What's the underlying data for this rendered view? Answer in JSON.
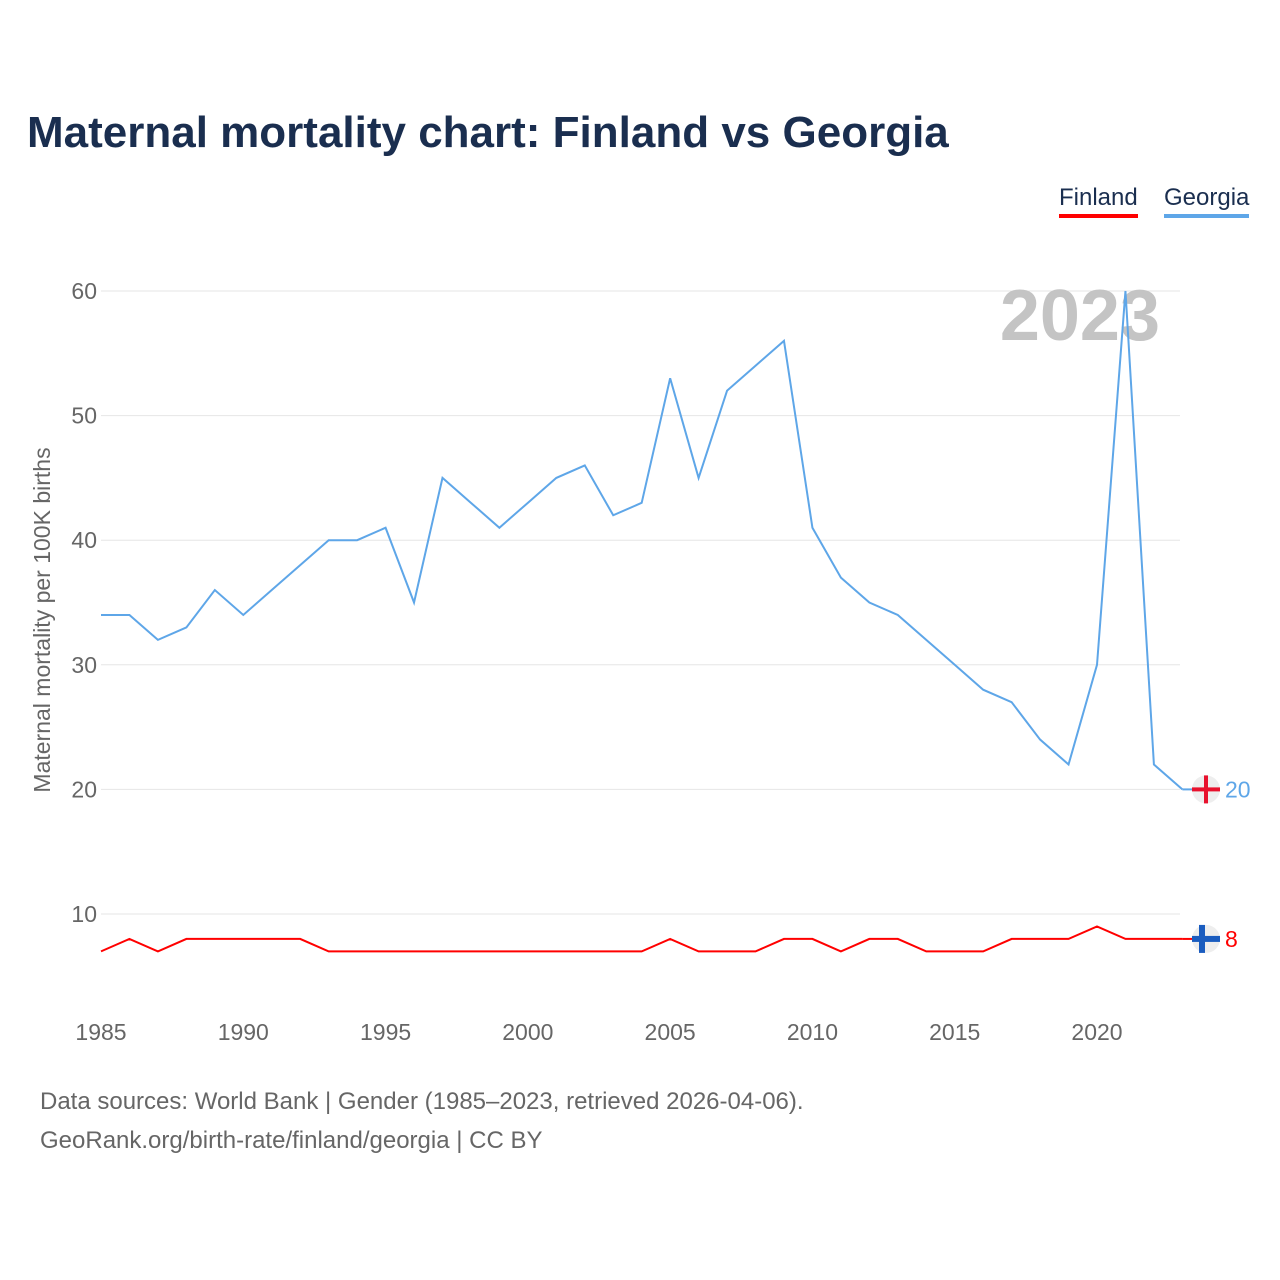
{
  "title": "Maternal mortality chart: Finland vs Georgia",
  "legend": {
    "finland": "Finland",
    "georgia": "Georgia"
  },
  "year_label": "2023",
  "source_line1": "Data sources: World Bank | Gender (1985–2023, retrieved 2026-04-06).",
  "source_line2": "GeoRank.org/birth-rate/finland/georgia | CC BY",
  "colors": {
    "finland": "#ff0000",
    "georgia": "#5ea6e8"
  },
  "chart_data": {
    "type": "line",
    "title": "Maternal mortality chart: Finland vs Georgia",
    "xlabel": "",
    "ylabel": "Maternal mortality per 100K births",
    "xlim": [
      1985,
      2023
    ],
    "ylim": [
      5,
      62
    ],
    "xticks": [
      1985,
      1990,
      1995,
      2000,
      2005,
      2010,
      2015,
      2020
    ],
    "yticks": [
      10,
      20,
      30,
      40,
      50,
      60
    ],
    "legend_position": "top-right",
    "x": [
      1985,
      1986,
      1987,
      1988,
      1989,
      1990,
      1991,
      1992,
      1993,
      1994,
      1995,
      1996,
      1997,
      1998,
      1999,
      2000,
      2001,
      2002,
      2003,
      2004,
      2005,
      2006,
      2007,
      2008,
      2009,
      2010,
      2011,
      2012,
      2013,
      2014,
      2015,
      2016,
      2017,
      2018,
      2019,
      2020,
      2021,
      2022,
      2023
    ],
    "series": [
      {
        "name": "Georgia",
        "end_label": "20",
        "values": [
          34,
          34,
          32,
          33,
          36,
          34,
          36,
          38,
          40,
          40,
          41,
          35,
          45,
          43,
          41,
          43,
          45,
          46,
          42,
          43,
          53,
          45,
          52,
          54,
          56,
          41,
          37,
          35,
          34,
          32,
          30,
          28,
          27,
          24,
          22,
          30,
          60,
          22,
          20
        ]
      },
      {
        "name": "Finland",
        "end_label": "8",
        "values": [
          7,
          8,
          7,
          8,
          8,
          8,
          8,
          8,
          7,
          7,
          7,
          7,
          7,
          7,
          7,
          7,
          7,
          7,
          7,
          7,
          8,
          7,
          7,
          7,
          8,
          8,
          7,
          8,
          8,
          7,
          7,
          7,
          8,
          8,
          8,
          9,
          8,
          8,
          8
        ]
      }
    ]
  }
}
